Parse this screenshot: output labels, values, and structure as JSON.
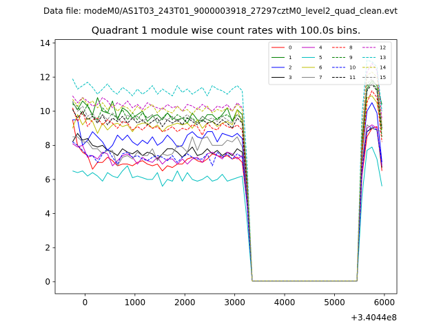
{
  "suptitle": "Data file: modeM0/AS1T03_243T01_9000003918_27297cztM0_level2_quad_clean.evt",
  "chart_data": {
    "type": "line",
    "title": "Quadrant 1 module wise count rates with 100.0s bins.",
    "xlabel": "",
    "ylabel": "",
    "x_offset_label": "+3.4044e8",
    "xlim": [
      -600,
      6250
    ],
    "ylim": [
      -0.7,
      14.2
    ],
    "xticks": [
      0,
      1000,
      2000,
      3000,
      4000,
      5000,
      6000
    ],
    "yticks": [
      0,
      2,
      4,
      6,
      8,
      10,
      12,
      14
    ],
    "xtick_labels": [
      "0",
      "1000",
      "2000",
      "3000",
      "4000",
      "5000",
      "6000"
    ],
    "ytick_labels": [
      "0",
      "2",
      "4",
      "6",
      "8",
      "10",
      "12",
      "14"
    ],
    "legend_position": "top-right",
    "x": [
      -250,
      -150,
      -50,
      50,
      150,
      250,
      350,
      450,
      550,
      650,
      750,
      850,
      950,
      1050,
      1150,
      1250,
      1350,
      1450,
      1550,
      1650,
      1750,
      1850,
      1950,
      2050,
      2150,
      2250,
      2350,
      2450,
      2550,
      2650,
      2750,
      2850,
      2950,
      3050,
      3150,
      3250,
      3350,
      5450,
      5550,
      5650,
      5750,
      5850,
      5950
    ],
    "series": [
      {
        "name": "0",
        "color": "#ff0000",
        "dash": "solid",
        "values": [
          9.5,
          8.0,
          7.6,
          7.4,
          6.6,
          7.0,
          7.0,
          7.3,
          7.1,
          6.8,
          6.9,
          6.9,
          6.8,
          7.0,
          7.1,
          6.9,
          6.8,
          6.9,
          6.5,
          6.8,
          6.7,
          6.9,
          6.9,
          7.2,
          7.3,
          7.1,
          7.0,
          7.2,
          7.5,
          7.4,
          7.3,
          7.4,
          7.2,
          7.3,
          7.0,
          4.5,
          0.05,
          0.05,
          6.2,
          8.5,
          9.0,
          9.1,
          6.5
        ]
      },
      {
        "name": "1",
        "color": "#008000",
        "dash": "solid",
        "values": [
          10.5,
          10.1,
          10.6,
          10.3,
          9.8,
          10.8,
          10.0,
          9.9,
          10.6,
          9.5,
          10.2,
          10.0,
          9.6,
          9.8,
          10.0,
          9.4,
          9.7,
          9.8,
          9.5,
          9.9,
          9.6,
          9.5,
          9.6,
          9.3,
          9.9,
          9.5,
          9.4,
          9.8,
          9.8,
          9.5,
          9.8,
          10.2,
          9.4,
          10.1,
          9.8,
          6.0,
          0.05,
          0.05,
          8.0,
          11.3,
          11.8,
          11.5,
          10.4
        ]
      },
      {
        "name": "2",
        "color": "#0000ff",
        "dash": "solid",
        "values": [
          9.5,
          9.5,
          8.0,
          8.3,
          8.8,
          8.5,
          8.2,
          7.7,
          8.0,
          8.6,
          8.3,
          8.6,
          8.2,
          8.0,
          8.3,
          8.1,
          8.5,
          8.0,
          8.2,
          8.6,
          8.3,
          7.9,
          8.0,
          8.6,
          8.8,
          8.5,
          8.4,
          8.8,
          8.8,
          8.2,
          8.7,
          8.6,
          8.5,
          8.7,
          8.4,
          5.0,
          0.05,
          0.05,
          7.5,
          10.0,
          10.5,
          9.9,
          7.0
        ]
      },
      {
        "name": "3",
        "color": "#000000",
        "dash": "solid",
        "values": [
          8.2,
          8.7,
          8.3,
          8.4,
          8.0,
          7.9,
          8.0,
          7.7,
          7.6,
          7.4,
          7.8,
          7.6,
          7.5,
          7.7,
          7.4,
          7.6,
          7.5,
          7.2,
          7.5,
          7.8,
          7.8,
          7.6,
          7.3,
          7.6,
          7.9,
          7.4,
          7.5,
          7.8,
          7.5,
          7.7,
          7.4,
          7.6,
          7.4,
          7.8,
          7.6,
          4.6,
          0.05,
          0.05,
          7.0,
          8.8,
          9.0,
          8.9,
          6.7
        ]
      },
      {
        "name": "4",
        "color": "#bf00bf",
        "dash": "solid",
        "values": [
          8.1,
          7.9,
          8.0,
          7.3,
          7.4,
          7.2,
          7.6,
          7.5,
          6.8,
          7.1,
          7.4,
          7.5,
          7.3,
          6.9,
          7.3,
          7.1,
          7.0,
          7.3,
          6.9,
          7.2,
          7.2,
          6.9,
          7.2,
          6.9,
          7.2,
          7.3,
          7.0,
          7.5,
          7.6,
          7.4,
          7.2,
          7.6,
          7.5,
          7.2,
          7.4,
          4.4,
          0.05,
          0.05,
          6.3,
          9.0,
          9.2,
          9.0,
          6.8
        ]
      },
      {
        "name": "5",
        "color": "#00bfbf",
        "dash": "solid",
        "values": [
          6.5,
          6.4,
          6.5,
          6.2,
          6.4,
          6.2,
          5.9,
          6.4,
          6.2,
          6.1,
          6.5,
          6.8,
          6.1,
          6.2,
          6.1,
          6.0,
          6.0,
          6.4,
          5.6,
          6.0,
          5.9,
          6.5,
          5.9,
          6.4,
          6.0,
          5.9,
          6.0,
          6.2,
          5.9,
          6.0,
          6.3,
          5.9,
          6.0,
          6.1,
          6.2,
          3.5,
          0.05,
          0.05,
          5.0,
          7.7,
          7.9,
          7.2,
          5.6
        ]
      },
      {
        "name": "6",
        "color": "#bfbf00",
        "dash": "solid",
        "values": [
          9.0,
          9.8,
          9.2,
          9.6,
          9.4,
          8.7,
          9.3,
          8.9,
          9.2,
          9.3,
          9.1,
          9.2,
          8.8,
          9.2,
          9.3,
          9.3,
          9.0,
          9.2,
          8.8,
          9.1,
          9.2,
          9.3,
          9.2,
          9.3,
          9.0,
          9.5,
          9.0,
          9.3,
          9.4,
          9.1,
          9.3,
          9.4,
          9.2,
          10.1,
          9.3,
          5.5,
          0.05,
          0.05,
          7.7,
          10.8,
          10.9,
          10.5,
          8.9
        ]
      },
      {
        "name": "7",
        "color": "#808080",
        "dash": "solid",
        "values": [
          8.5,
          8.5,
          8.2,
          8.2,
          7.8,
          7.8,
          7.5,
          7.7,
          7.7,
          6.8,
          7.3,
          7.4,
          7.2,
          7.6,
          7.4,
          7.4,
          7.8,
          7.1,
          7.5,
          7.4,
          7.5,
          8.0,
          7.9,
          7.6,
          8.5,
          7.7,
          8.4,
          8.5,
          8.0,
          8.0,
          8.0,
          8.3,
          8.2,
          8.5,
          7.9,
          4.9,
          0.05,
          0.05,
          7.0,
          9.2,
          9.0,
          8.9,
          8.8
        ]
      },
      {
        "name": "8",
        "color": "#ff0000",
        "dash": "dashed",
        "values": [
          10.2,
          9.4,
          10.0,
          9.1,
          9.5,
          9.6,
          9.2,
          9.5,
          9.3,
          9.0,
          9.4,
          9.3,
          8.9,
          9.1,
          8.9,
          9.2,
          9.0,
          9.1,
          8.8,
          8.9,
          9.1,
          8.8,
          9.0,
          8.9,
          9.2,
          9.1,
          8.6,
          9.3,
          9.0,
          8.9,
          9.3,
          9.1,
          9.0,
          9.2,
          8.9,
          5.3,
          0.05,
          0.05,
          7.4,
          10.5,
          11.2,
          10.8,
          8.2
        ]
      },
      {
        "name": "9",
        "color": "#008000",
        "dash": "dashed",
        "values": [
          10.4,
          10.3,
          9.8,
          10.4,
          9.7,
          9.5,
          10.2,
          9.9,
          9.8,
          9.6,
          10.1,
          9.5,
          9.9,
          9.5,
          9.9,
          9.6,
          9.8,
          9.3,
          9.6,
          9.9,
          9.5,
          9.8,
          9.6,
          9.6,
          9.6,
          9.3,
          9.7,
          9.5,
          9.4,
          9.6,
          9.7,
          9.8,
          9.5,
          9.8,
          9.5,
          5.8,
          0.05,
          0.05,
          8.3,
          11.5,
          11.7,
          11.3,
          8.5
        ]
      },
      {
        "name": "10",
        "color": "#0000ff",
        "dash": "dashed",
        "values": [
          8.2,
          8.0,
          7.7,
          7.4,
          7.4,
          7.0,
          7.5,
          7.8,
          7.3,
          6.9,
          7.5,
          7.6,
          7.3,
          7.4,
          7.2,
          7.1,
          7.3,
          7.4,
          7.3,
          7.1,
          7.4,
          7.0,
          7.3,
          7.5,
          7.3,
          7.2,
          7.2,
          7.5,
          6.8,
          7.6,
          7.3,
          7.5,
          7.2,
          7.5,
          7.3,
          4.5,
          0.05,
          0.05,
          6.6,
          8.8,
          9.1,
          8.9,
          6.9
        ]
      },
      {
        "name": "11",
        "color": "#000000",
        "dash": "dashed",
        "values": [
          10.1,
          9.6,
          10.0,
          9.5,
          9.7,
          9.3,
          9.8,
          9.2,
          9.6,
          9.4,
          9.7,
          9.3,
          9.6,
          9.3,
          9.5,
          9.2,
          9.4,
          9.6,
          9.1,
          9.5,
          9.3,
          9.5,
          9.2,
          9.6,
          9.4,
          9.2,
          9.5,
          9.3,
          9.4,
          9.2,
          9.5,
          9.3,
          9.0,
          9.6,
          9.3,
          5.6,
          0.05,
          0.05,
          8.2,
          11.2,
          11.6,
          11.2,
          9.0
        ]
      },
      {
        "name": "12",
        "color": "#bf00bf",
        "dash": "dashed",
        "values": [
          10.9,
          10.5,
          10.8,
          10.6,
          10.3,
          10.4,
          10.8,
          10.6,
          10.2,
          10.5,
          10.3,
          10.6,
          10.2,
          10.4,
          10.1,
          10.5,
          10.3,
          10.2,
          10.1,
          10.4,
          10.2,
          10.3,
          10.0,
          10.4,
          10.3,
          10.1,
          10.4,
          10.2,
          10.0,
          10.3,
          10.2,
          10.4,
          10.0,
          10.5,
          10.2,
          6.2,
          0.05,
          0.05,
          9.0,
          12.3,
          12.8,
          12.4,
          9.5
        ]
      },
      {
        "name": "13",
        "color": "#00bfbf",
        "dash": "dashed",
        "values": [
          11.9,
          11.3,
          11.5,
          11.7,
          11.4,
          11.0,
          11.3,
          11.6,
          11.2,
          11.0,
          11.4,
          11.2,
          10.9,
          11.3,
          11.0,
          11.2,
          11.5,
          11.0,
          11.3,
          11.1,
          10.9,
          11.5,
          11.1,
          11.3,
          11.0,
          11.2,
          11.4,
          10.9,
          11.5,
          11.3,
          11.2,
          11.0,
          11.3,
          11.5,
          11.2,
          6.8,
          0.05,
          0.05,
          9.8,
          13.0,
          12.9,
          12.6,
          10.0
        ]
      },
      {
        "name": "14",
        "color": "#bfbf00",
        "dash": "dashed",
        "values": [
          10.7,
          10.3,
          10.8,
          10.4,
          10.6,
          10.2,
          10.5,
          10.1,
          10.4,
          10.0,
          10.3,
          10.2,
          9.9,
          10.3,
          10.0,
          10.2,
          10.4,
          9.9,
          10.2,
          10.0,
          9.9,
          10.3,
          10.0,
          10.1,
          9.8,
          10.2,
          10.0,
          10.3,
          9.9,
          10.1,
          10.0,
          10.2,
          10.0,
          10.4,
          10.1,
          6.1,
          0.05,
          0.05,
          8.9,
          12.1,
          12.3,
          12.0,
          9.2
        ]
      },
      {
        "name": "15",
        "color": "#808080",
        "dash": "dashed",
        "values": [
          10.6,
          10.0,
          10.3,
          9.7,
          9.9,
          9.4,
          9.8,
          9.5,
          9.9,
          9.6,
          9.3,
          9.8,
          9.5,
          9.7,
          9.4,
          9.6,
          9.8,
          9.3,
          9.6,
          9.5,
          9.7,
          9.4,
          9.6,
          9.8,
          9.5,
          9.3,
          9.7,
          9.5,
          9.6,
          9.4,
          9.7,
          9.5,
          9.3,
          9.8,
          9.6,
          5.8,
          0.05,
          0.05,
          8.4,
          11.6,
          11.9,
          11.5,
          9.1
        ]
      }
    ]
  }
}
